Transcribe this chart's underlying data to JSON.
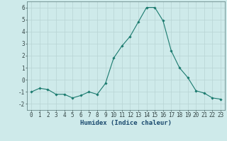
{
  "x": [
    0,
    1,
    2,
    3,
    4,
    5,
    6,
    7,
    8,
    9,
    10,
    11,
    12,
    13,
    14,
    15,
    16,
    17,
    18,
    19,
    20,
    21,
    22,
    23
  ],
  "y": [
    -1.0,
    -0.7,
    -0.8,
    -1.2,
    -1.2,
    -1.5,
    -1.3,
    -1.0,
    -1.2,
    -0.3,
    1.8,
    2.8,
    3.6,
    4.8,
    6.0,
    6.0,
    4.9,
    2.4,
    1.0,
    0.2,
    -0.9,
    -1.1,
    -1.5,
    -1.6
  ],
  "line_color": "#1a7a6e",
  "marker": "D",
  "marker_size": 1.8,
  "bg_color": "#ceeaea",
  "grid_color": "#b8d4d4",
  "xlabel": "Humidex (Indice chaleur)",
  "xlim": [
    -0.5,
    23.5
  ],
  "ylim": [
    -2.5,
    6.5
  ],
  "yticks": [
    -2,
    -1,
    0,
    1,
    2,
    3,
    4,
    5,
    6
  ],
  "xticks": [
    0,
    1,
    2,
    3,
    4,
    5,
    6,
    7,
    8,
    9,
    10,
    11,
    12,
    13,
    14,
    15,
    16,
    17,
    18,
    19,
    20,
    21,
    22,
    23
  ],
  "tick_fontsize": 5.5,
  "xlabel_fontsize": 6.5
}
